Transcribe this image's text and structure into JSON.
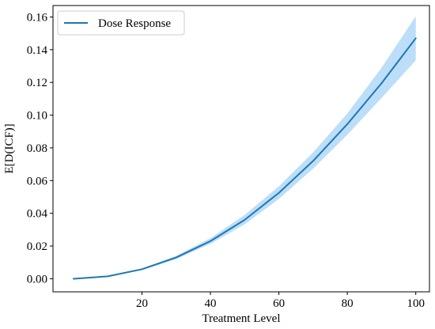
{
  "chart_data": {
    "type": "line",
    "title": "",
    "xlabel": "Treatment Level",
    "ylabel": "E[D(ICF)]",
    "xlim": [
      -6,
      104
    ],
    "ylim": [
      -0.008,
      0.167
    ],
    "x_ticks": [
      20,
      40,
      60,
      80,
      100
    ],
    "y_ticks": [
      0.0,
      0.02,
      0.04,
      0.06,
      0.08,
      0.1,
      0.12,
      0.14,
      0.16
    ],
    "y_tick_labels": [
      "0.00",
      "0.02",
      "0.04",
      "0.06",
      "0.08",
      "0.10",
      "0.12",
      "0.14",
      "0.16"
    ],
    "grid": false,
    "legend": {
      "position": "top-left",
      "entries": [
        "Dose Response"
      ]
    },
    "series": [
      {
        "name": "Dose Response",
        "color": "#1f77b4",
        "band_color": "#a6d3f5",
        "x": [
          0,
          10,
          20,
          30,
          40,
          50,
          60,
          70,
          80,
          90,
          100
        ],
        "y": [
          0.0,
          0.0015,
          0.0058,
          0.013,
          0.023,
          0.036,
          0.0525,
          0.072,
          0.0945,
          0.1195,
          0.147
        ],
        "lower": [
          0.0,
          0.0013,
          0.0053,
          0.012,
          0.0213,
          0.0333,
          0.0488,
          0.0673,
          0.088,
          0.1105,
          0.1335
        ],
        "upper": [
          0.0,
          0.0017,
          0.0063,
          0.014,
          0.0248,
          0.039,
          0.0565,
          0.0772,
          0.101,
          0.129,
          0.1605
        ]
      }
    ]
  }
}
